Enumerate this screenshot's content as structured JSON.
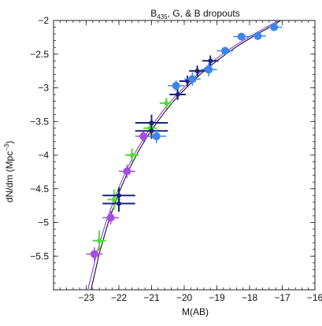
{
  "chart_data": {
    "type": "scatter",
    "title": "B",
    "title_subscript": "435",
    "title_rest": ", G, & B dropouts",
    "xlabel": "M(AB)",
    "ylabel_main": "dN/dm (Mpc",
    "ylabel_sup": "−3",
    "ylabel_close": ")",
    "xlim": [
      -24.0,
      -16.0
    ],
    "ylim": [
      -6.0,
      -2.0
    ],
    "x_ticks": [
      -23,
      -22,
      -21,
      -20,
      -19,
      -18,
      -17,
      -16
    ],
    "x_tick_labels": [
      "−23",
      "−22",
      "−21",
      "−20",
      "−19",
      "−18",
      "−17",
      "−16"
    ],
    "y_ticks": [
      -5.5,
      -5,
      -4.5,
      -4,
      -3.5,
      -3,
      -2.5,
      -2
    ],
    "y_tick_labels": [
      "−5.5",
      "−5",
      "−4.5",
      "−4",
      "−3.5",
      "−3",
      "−2.5",
      "−2"
    ],
    "grid": false,
    "series": [
      {
        "color": "#a64de0",
        "marker": "circle-large",
        "points": [
          {
            "x": -22.75,
            "y": -5.47,
            "xerr": 0.25,
            "yerr": 0.1
          },
          {
            "x": -22.25,
            "y": -4.93,
            "xerr": 0.25,
            "yerr": 0.1
          },
          {
            "x": -21.75,
            "y": -4.24,
            "xerr": 0.25,
            "yerr": 0.1
          },
          {
            "x": -21.25,
            "y": -3.72,
            "xerr": 0.25,
            "yerr": 0.08
          }
        ]
      },
      {
        "color": "#4ee030",
        "marker": "circle-small",
        "points": [
          {
            "x": -22.6,
            "y": -5.27,
            "xerr": 0.2,
            "yerr": 0.15
          },
          {
            "x": -22.15,
            "y": -4.66,
            "xerr": 0.2,
            "yerr": 0.15
          },
          {
            "x": -21.6,
            "y": -4.0,
            "xerr": 0.2,
            "yerr": 0.1
          },
          {
            "x": -21.05,
            "y": -3.6,
            "xerr": 0.2,
            "yerr": 0.1
          },
          {
            "x": -20.55,
            "y": -3.23,
            "xerr": 0.2,
            "yerr": 0.08
          }
        ]
      },
      {
        "color": "#1a237e",
        "marker": "circle-small",
        "points": [
          {
            "x": -22.0,
            "y": -4.6,
            "xerr": 0.5,
            "yerr": 0.12
          },
          {
            "x": -22.0,
            "y": -4.72,
            "xerr": 0.5,
            "yerr": 0.12
          },
          {
            "x": -21.0,
            "y": -3.52,
            "xerr": 0.5,
            "yerr": 0.12
          },
          {
            "x": -21.0,
            "y": -3.64,
            "xerr": 0.5,
            "yerr": 0.12
          },
          {
            "x": -20.2,
            "y": -3.1,
            "xerr": 0.25,
            "yerr": 0.08
          },
          {
            "x": -19.9,
            "y": -2.9,
            "xerr": 0.25,
            "yerr": 0.08
          },
          {
            "x": -19.6,
            "y": -2.75,
            "xerr": 0.25,
            "yerr": 0.08
          },
          {
            "x": -19.2,
            "y": -2.6,
            "xerr": 0.25,
            "yerr": 0.08
          }
        ]
      },
      {
        "color": "#3d85e8",
        "marker": "circle-large",
        "points": [
          {
            "x": -20.85,
            "y": -3.72,
            "xerr": 0.3,
            "yerr": 0.1
          },
          {
            "x": -20.25,
            "y": -2.97,
            "xerr": 0.25,
            "yerr": 0.08
          },
          {
            "x": -19.75,
            "y": -2.87,
            "xerr": 0.25,
            "yerr": 0.1
          },
          {
            "x": -19.25,
            "y": -2.73,
            "xerr": 0.25,
            "yerr": 0.1
          },
          {
            "x": -18.75,
            "y": -2.45,
            "xerr": 0.25,
            "yerr": 0.05
          },
          {
            "x": -18.25,
            "y": -2.24,
            "xerr": 0.25,
            "yerr": 0.05
          },
          {
            "x": -17.75,
            "y": -2.23,
            "xerr": 0.25,
            "yerr": 0.05
          },
          {
            "x": -17.25,
            "y": -2.1,
            "xerr": 0.25,
            "yerr": 0.05
          }
        ]
      }
    ],
    "curves": [
      {
        "color": "#111111",
        "points": [
          [
            -22.85,
            -6.0
          ],
          [
            -22.6,
            -5.46
          ],
          [
            -22.3,
            -4.96
          ],
          [
            -22.0,
            -4.56
          ],
          [
            -21.7,
            -4.22
          ],
          [
            -21.4,
            -3.94
          ],
          [
            -21.1,
            -3.7
          ],
          [
            -20.8,
            -3.49
          ],
          [
            -20.5,
            -3.3
          ],
          [
            -20.2,
            -3.13
          ],
          [
            -19.9,
            -2.98
          ],
          [
            -19.6,
            -2.84
          ],
          [
            -19.3,
            -2.71
          ],
          [
            -19.0,
            -2.6
          ],
          [
            -18.7,
            -2.49
          ],
          [
            -18.4,
            -2.39
          ],
          [
            -18.1,
            -2.3
          ],
          [
            -17.8,
            -2.21
          ],
          [
            -17.5,
            -2.13
          ],
          [
            -17.2,
            -2.05
          ],
          [
            -17.05,
            -2.0
          ]
        ]
      },
      {
        "color": "#8e3fd6",
        "points": [
          [
            -22.95,
            -6.0
          ],
          [
            -22.7,
            -5.5
          ],
          [
            -22.4,
            -5.0
          ],
          [
            -22.1,
            -4.6
          ],
          [
            -21.8,
            -4.25
          ],
          [
            -21.5,
            -3.96
          ],
          [
            -21.2,
            -3.72
          ],
          [
            -20.9,
            -3.5
          ],
          [
            -20.6,
            -3.31
          ],
          [
            -20.3,
            -3.14
          ],
          [
            -20.0,
            -2.99
          ],
          [
            -19.7,
            -2.85
          ],
          [
            -19.4,
            -2.72
          ],
          [
            -19.1,
            -2.6
          ],
          [
            -18.8,
            -2.49
          ],
          [
            -18.5,
            -2.39
          ],
          [
            -18.2,
            -2.3
          ],
          [
            -17.9,
            -2.21
          ],
          [
            -17.6,
            -2.13
          ],
          [
            -17.3,
            -2.05
          ],
          [
            -17.1,
            -2.0
          ]
        ]
      }
    ]
  }
}
